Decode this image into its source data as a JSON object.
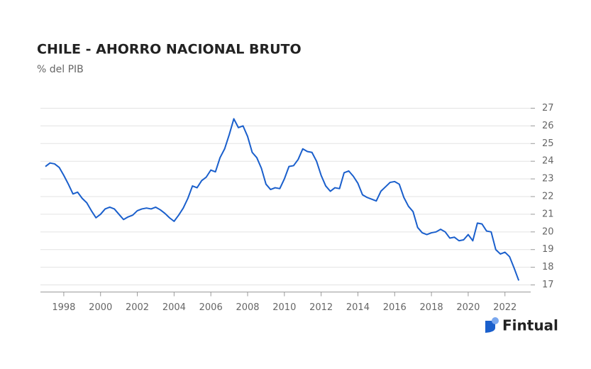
{
  "chart_data": {
    "type": "line",
    "title": "CHILE - AHORRO NACIONAL BRUTO",
    "subtitle": "% del PIB",
    "brand": "Fintual",
    "x": [
      1997.0,
      1997.25,
      1997.5,
      1997.75,
      1998.0,
      1998.25,
      1998.5,
      1998.75,
      1999.0,
      1999.25,
      1999.5,
      1999.75,
      2000.0,
      2000.25,
      2000.5,
      2000.75,
      2001.0,
      2001.25,
      2001.5,
      2001.75,
      2002.0,
      2002.25,
      2002.5,
      2002.75,
      2003.0,
      2003.25,
      2003.5,
      2003.75,
      2004.0,
      2004.25,
      2004.5,
      2004.75,
      2005.0,
      2005.25,
      2005.5,
      2005.75,
      2006.0,
      2006.25,
      2006.5,
      2006.75,
      2007.0,
      2007.25,
      2007.5,
      2007.75,
      2008.0,
      2008.25,
      2008.5,
      2008.75,
      2009.0,
      2009.25,
      2009.5,
      2009.75,
      2010.0,
      2010.25,
      2010.5,
      2010.75,
      2011.0,
      2011.25,
      2011.5,
      2011.75,
      2012.0,
      2012.25,
      2012.5,
      2012.75,
      2013.0,
      2013.25,
      2013.5,
      2013.75,
      2014.0,
      2014.25,
      2014.5,
      2014.75,
      2015.0,
      2015.25,
      2015.5,
      2015.75,
      2016.0,
      2016.25,
      2016.5,
      2016.75,
      2017.0,
      2017.25,
      2017.5,
      2017.75,
      2018.0,
      2018.25,
      2018.5,
      2018.75,
      2019.0,
      2019.25,
      2019.5,
      2019.75,
      2020.0,
      2020.25,
      2020.5,
      2020.75,
      2021.0,
      2021.25,
      2021.5,
      2021.75,
      2022.0,
      2022.25,
      2022.5,
      2022.75
    ],
    "series": [
      {
        "name": "Ahorro nacional bruto",
        "color": "#1a5fcc",
        "values": [
          23.7,
          23.9,
          23.85,
          23.65,
          23.2,
          22.7,
          22.15,
          22.25,
          21.9,
          21.65,
          21.2,
          20.8,
          21.0,
          21.3,
          21.4,
          21.3,
          21.0,
          20.7,
          20.85,
          20.95,
          21.2,
          21.3,
          21.35,
          21.3,
          21.4,
          21.25,
          21.05,
          20.8,
          20.6,
          20.95,
          21.35,
          21.9,
          22.6,
          22.5,
          22.9,
          23.1,
          23.5,
          23.4,
          24.2,
          24.7,
          25.5,
          26.4,
          25.9,
          26.0,
          25.4,
          24.5,
          24.2,
          23.6,
          22.7,
          22.4,
          22.5,
          22.45,
          23.0,
          23.7,
          23.75,
          24.1,
          24.7,
          24.55,
          24.5,
          24.0,
          23.2,
          22.6,
          22.3,
          22.5,
          22.45,
          23.35,
          23.45,
          23.15,
          22.75,
          22.1,
          21.95,
          21.85,
          21.75,
          22.3,
          22.55,
          22.8,
          22.85,
          22.7,
          21.95,
          21.45,
          21.15,
          20.25,
          19.95,
          19.85,
          19.95,
          20.0,
          20.15,
          20.0,
          19.65,
          19.7,
          19.5,
          19.55,
          19.85,
          19.5,
          20.5,
          20.45,
          20.05,
          20.0,
          19.0,
          18.75,
          18.85,
          18.6,
          17.95,
          17.25
        ]
      }
    ],
    "xlim": [
      1996.73,
      2023.4
    ],
    "ylim": [
      16.6,
      27.3
    ],
    "xticks": [
      1998,
      2000,
      2002,
      2004,
      2006,
      2008,
      2010,
      2012,
      2014,
      2016,
      2018,
      2020,
      2022
    ],
    "yticks": [
      17,
      18,
      19,
      20,
      21,
      22,
      23,
      24,
      25,
      26,
      27
    ],
    "grid": true
  }
}
